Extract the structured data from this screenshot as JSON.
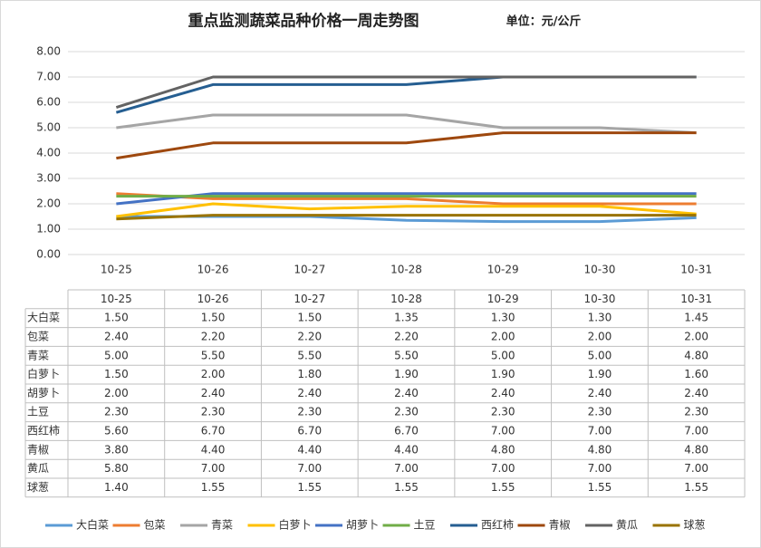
{
  "chart_data": {
    "type": "line",
    "title": "重点监测蔬菜品种价格一周走势图",
    "subtitle": "单位：元/公斤",
    "categories": [
      "10-25",
      "10-26",
      "10-27",
      "10-28",
      "10-29",
      "10-30",
      "10-31"
    ],
    "ylim": [
      0,
      8
    ],
    "yticks": [
      {
        "value": 0,
        "label": "0.00"
      },
      {
        "value": 1,
        "label": "1.00"
      },
      {
        "value": 2,
        "label": "2.00"
      },
      {
        "value": 3,
        "label": "3.00"
      },
      {
        "value": 4,
        "label": "4.00"
      },
      {
        "value": 5,
        "label": "5.00"
      },
      {
        "value": 6,
        "label": "6.00"
      },
      {
        "value": 7,
        "label": "7.00"
      },
      {
        "value": 8,
        "label": "8.00"
      }
    ],
    "grid": true,
    "legend": "bottom",
    "series": [
      {
        "name": "大白菜",
        "color": "#5b9bd5",
        "values": [
          1.5,
          1.5,
          1.5,
          1.35,
          1.3,
          1.3,
          1.45
        ],
        "value_labels": [
          "1.50",
          "1.50",
          "1.50",
          "1.35",
          "1.30",
          "1.30",
          "1.45"
        ]
      },
      {
        "name": "包菜",
        "color": "#ed7d31",
        "values": [
          2.4,
          2.2,
          2.2,
          2.2,
          2.0,
          2.0,
          2.0
        ],
        "value_labels": [
          "2.40",
          "2.20",
          "2.20",
          "2.20",
          "2.00",
          "2.00",
          "2.00"
        ]
      },
      {
        "name": "青菜",
        "color": "#a5a5a5",
        "values": [
          5.0,
          5.5,
          5.5,
          5.5,
          5.0,
          5.0,
          4.8
        ],
        "value_labels": [
          "5.00",
          "5.50",
          "5.50",
          "5.50",
          "5.00",
          "5.00",
          "4.80"
        ]
      },
      {
        "name": "白萝卜",
        "color": "#ffc000",
        "values": [
          1.5,
          2.0,
          1.8,
          1.9,
          1.9,
          1.9,
          1.6
        ],
        "value_labels": [
          "1.50",
          "2.00",
          "1.80",
          "1.90",
          "1.90",
          "1.90",
          "1.60"
        ]
      },
      {
        "name": "胡萝卜",
        "color": "#4472c4",
        "values": [
          2.0,
          2.4,
          2.4,
          2.4,
          2.4,
          2.4,
          2.4
        ],
        "value_labels": [
          "2.00",
          "2.40",
          "2.40",
          "2.40",
          "2.40",
          "2.40",
          "2.40"
        ]
      },
      {
        "name": "土豆",
        "color": "#70ad47",
        "values": [
          2.3,
          2.3,
          2.3,
          2.3,
          2.3,
          2.3,
          2.3
        ],
        "value_labels": [
          "2.30",
          "2.30",
          "2.30",
          "2.30",
          "2.30",
          "2.30",
          "2.30"
        ]
      },
      {
        "name": "西红柿",
        "color": "#255e91",
        "values": [
          5.6,
          6.7,
          6.7,
          6.7,
          7.0,
          7.0,
          7.0
        ],
        "value_labels": [
          "5.60",
          "6.70",
          "6.70",
          "6.70",
          "7.00",
          "7.00",
          "7.00"
        ]
      },
      {
        "name": "青椒",
        "color": "#9e480e",
        "values": [
          3.8,
          4.4,
          4.4,
          4.4,
          4.8,
          4.8,
          4.8
        ],
        "value_labels": [
          "3.80",
          "4.40",
          "4.40",
          "4.40",
          "4.80",
          "4.80",
          "4.80"
        ]
      },
      {
        "name": "黄瓜",
        "color": "#636363",
        "values": [
          5.8,
          7.0,
          7.0,
          7.0,
          7.0,
          7.0,
          7.0
        ],
        "value_labels": [
          "5.80",
          "7.00",
          "7.00",
          "7.00",
          "7.00",
          "7.00",
          "7.00"
        ]
      },
      {
        "name": "球葱",
        "color": "#997300",
        "values": [
          1.4,
          1.55,
          1.55,
          1.55,
          1.55,
          1.55,
          1.55
        ],
        "value_labels": [
          "1.40",
          "1.55",
          "1.55",
          "1.55",
          "1.55",
          "1.55",
          "1.55"
        ]
      }
    ]
  }
}
